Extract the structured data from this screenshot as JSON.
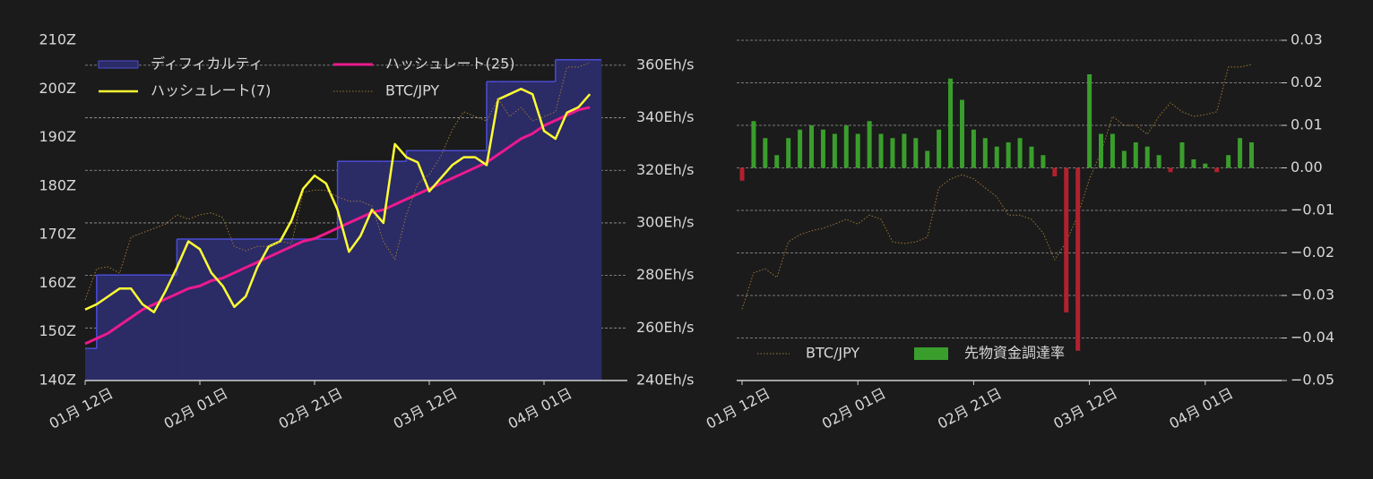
{
  "chart_data": [
    {
      "type": "line",
      "x": [
        "01-12",
        "01-14",
        "01-16",
        "01-18",
        "01-20",
        "01-22",
        "01-24",
        "01-26",
        "01-28",
        "01-30",
        "02-01",
        "02-03",
        "02-05",
        "02-07",
        "02-09",
        "02-11",
        "02-13",
        "02-15",
        "02-17",
        "02-19",
        "02-21",
        "02-23",
        "02-25",
        "02-27",
        "02-29",
        "03-02",
        "03-04",
        "03-06",
        "03-08",
        "03-10",
        "03-12",
        "03-14",
        "03-16",
        "03-18",
        "03-20",
        "03-22",
        "03-24",
        "03-26",
        "03-28",
        "03-30",
        "04-01",
        "04-03",
        "04-05",
        "04-07",
        "04-09"
      ],
      "xticks": [
        {
          "value": "01-12",
          "label": "01月 12日"
        },
        {
          "value": "02-01",
          "label": "02月 01日"
        },
        {
          "value": "02-21",
          "label": "02月 21日"
        },
        {
          "value": "03-12",
          "label": "03月 12日"
        },
        {
          "value": "04-01",
          "label": "04月 01日"
        }
      ],
      "ylim": [
        140,
        210
      ],
      "yticks": [
        {
          "value": 140,
          "label": "140Z"
        },
        {
          "value": 150,
          "label": "150Z"
        },
        {
          "value": 160,
          "label": "160Z"
        },
        {
          "value": 170,
          "label": "170Z"
        },
        {
          "value": 180,
          "label": "180Z"
        },
        {
          "value": 190,
          "label": "190Z"
        },
        {
          "value": 200,
          "label": "200Z"
        },
        {
          "value": 210,
          "label": "210Z"
        }
      ],
      "y2lim": [
        240,
        369.5
      ],
      "y2ticks": [
        {
          "value": 240,
          "label": "240Eh/s"
        },
        {
          "value": 260,
          "label": "260Eh/s"
        },
        {
          "value": 280,
          "label": "280Eh/s"
        },
        {
          "value": 300,
          "label": "300Eh/s"
        },
        {
          "value": 320,
          "label": "320Eh/s"
        },
        {
          "value": 340,
          "label": "340Eh/s"
        },
        {
          "value": 360,
          "label": "360Eh/s"
        }
      ],
      "grid": "y2",
      "series": [
        {
          "name": "ディフィカルティ",
          "type": "step-area",
          "color": "#2b2b66",
          "edge_color": "#4c4cd6",
          "axis": "y",
          "values": [
            146.6,
            161.7,
            161.7,
            161.7,
            161.7,
            161.7,
            161.7,
            161.7,
            169.1,
            169.1,
            169.1,
            169.1,
            169.1,
            169.1,
            169.1,
            169.1,
            169.1,
            169.1,
            169.1,
            169.1,
            169.1,
            169.1,
            185.1,
            185.1,
            185.1,
            185.1,
            185.1,
            185.1,
            187.3,
            187.3,
            187.3,
            187.3,
            187.3,
            187.3,
            187.3,
            201.5,
            201.5,
            201.5,
            201.5,
            201.5,
            201.5,
            206.0,
            206.0,
            206.0,
            206.0
          ]
        },
        {
          "name": "ハッシュレート(25)",
          "type": "line",
          "color": "#ec1a8e",
          "width": 3,
          "axis": "y2",
          "values": [
            254,
            256,
            258,
            261,
            264,
            267,
            269,
            271,
            273,
            275,
            276,
            278,
            279,
            281,
            283,
            285,
            287,
            289,
            291,
            293,
            294,
            296,
            298,
            300,
            302,
            304,
            305,
            307,
            309,
            311,
            313,
            315,
            317,
            319,
            321,
            323,
            326,
            329,
            332,
            334,
            337,
            339,
            341,
            343,
            344
          ]
        },
        {
          "name": "ハッシュレート(7)",
          "type": "line",
          "color": "#ffff33",
          "width": 2.5,
          "axis": "y2",
          "values": [
            267,
            269,
            272,
            275,
            275,
            269,
            266,
            274,
            283,
            293,
            290,
            281,
            276,
            268,
            272,
            283,
            291,
            293,
            301,
            313,
            318,
            315,
            305,
            289,
            295,
            305,
            300,
            330,
            325,
            323,
            312,
            317,
            322,
            325,
            325,
            322,
            347,
            349,
            351,
            349,
            335,
            332,
            342,
            344,
            349
          ]
        },
        {
          "name": "BTC/JPY",
          "type": "line",
          "color": "#9a7634",
          "width": 1,
          "dash": "1.5,2",
          "axis": "y",
          "values": [
            156.6,
            163.0,
            163.4,
            162.1,
            169.5,
            170.4,
            171.3,
            172.2,
            174.1,
            173.2,
            174.1,
            174.5,
            173.5,
            167.6,
            166.7,
            167.6,
            167.6,
            168.6,
            168.2,
            178.7,
            179.2,
            179.1,
            177.8,
            176.9,
            176.9,
            175.9,
            168.6,
            164.9,
            174.1,
            180.5,
            182.4,
            186.1,
            191.6,
            195.3,
            194.3,
            193.4,
            198.0,
            194.3,
            196.2,
            193.4,
            194.3,
            195.3,
            204.5,
            204.5,
            205.4
          ]
        }
      ]
    },
    {
      "type": "bar",
      "x": [
        "01-12",
        "01-14",
        "01-16",
        "01-18",
        "01-20",
        "01-22",
        "01-24",
        "01-26",
        "01-28",
        "01-30",
        "02-01",
        "02-03",
        "02-05",
        "02-07",
        "02-09",
        "02-11",
        "02-13",
        "02-15",
        "02-17",
        "02-19",
        "02-21",
        "02-23",
        "02-25",
        "02-27",
        "02-29",
        "03-02",
        "03-04",
        "03-06",
        "03-08",
        "03-10",
        "03-12",
        "03-14",
        "03-16",
        "03-18",
        "03-20",
        "03-22",
        "03-24",
        "03-26",
        "03-28",
        "03-30",
        "04-01",
        "04-03",
        "04-05",
        "04-07",
        "04-09"
      ],
      "xticks": [
        {
          "value": "01-12",
          "label": "01月 12日"
        },
        {
          "value": "02-01",
          "label": "02月 01日"
        },
        {
          "value": "02-21",
          "label": "02月 21日"
        },
        {
          "value": "03-12",
          "label": "03月 12日"
        },
        {
          "value": "04-01",
          "label": "04月 01日"
        }
      ],
      "ylim": [
        -0.05,
        0.03
      ],
      "yticks": [
        {
          "value": -0.05,
          "label": "−0.05"
        },
        {
          "value": -0.04,
          "label": "−0.04"
        },
        {
          "value": -0.03,
          "label": "−0.03"
        },
        {
          "value": -0.02,
          "label": "−0.02"
        },
        {
          "value": -0.01,
          "label": "−0.01"
        },
        {
          "value": 0,
          "label": "0.00"
        },
        {
          "value": 0.01,
          "label": "0.01"
        },
        {
          "value": 0.02,
          "label": "0.02"
        },
        {
          "value": 0.03,
          "label": "0.03"
        }
      ],
      "y_axis_side": "right",
      "grid": "y",
      "series": [
        {
          "name": "BTC/JPY",
          "type": "line",
          "color": "#9a7634",
          "width": 1,
          "dash": "1.5,2",
          "axis": "y",
          "values": [
            -0.0332,
            -0.0247,
            -0.0237,
            -0.0258,
            -0.0174,
            -0.0157,
            -0.0148,
            -0.0142,
            -0.0132,
            -0.0121,
            -0.0132,
            -0.0111,
            -0.0121,
            -0.0174,
            -0.0178,
            -0.0174,
            -0.0163,
            -0.0047,
            -0.0026,
            -0.0016,
            -0.0026,
            -0.0047,
            -0.0068,
            -0.0111,
            -0.0111,
            -0.0121,
            -0.0153,
            -0.0216,
            -0.0174,
            -0.0111,
            -0.0026,
            0.0037,
            0.0121,
            0.01,
            0.01,
            0.0079,
            0.0121,
            0.0153,
            0.0132,
            0.0121,
            0.0125,
            0.0132,
            0.0237,
            0.0237,
            0.0243
          ]
        },
        {
          "name": "先物資金調達率",
          "type": "bar",
          "color": "#3a9e2c",
          "negative_color": "#b3202e",
          "axis": "y",
          "values": [
            -0.003,
            0.011,
            0.007,
            0.003,
            0.007,
            0.009,
            0.01,
            0.009,
            0.008,
            0.01,
            0.008,
            0.011,
            0.008,
            0.007,
            0.008,
            0.007,
            0.004,
            0.009,
            0.021,
            0.016,
            0.009,
            0.007,
            0.005,
            0.006,
            0.007,
            0.005,
            0.003,
            -0.002,
            -0.034,
            -0.043,
            0.022,
            0.008,
            0.008,
            0.004,
            0.006,
            0.005,
            0.003,
            -0.001,
            0.006,
            0.002,
            0.001,
            -0.001,
            0.003,
            0.007,
            0.006
          ]
        }
      ]
    }
  ]
}
